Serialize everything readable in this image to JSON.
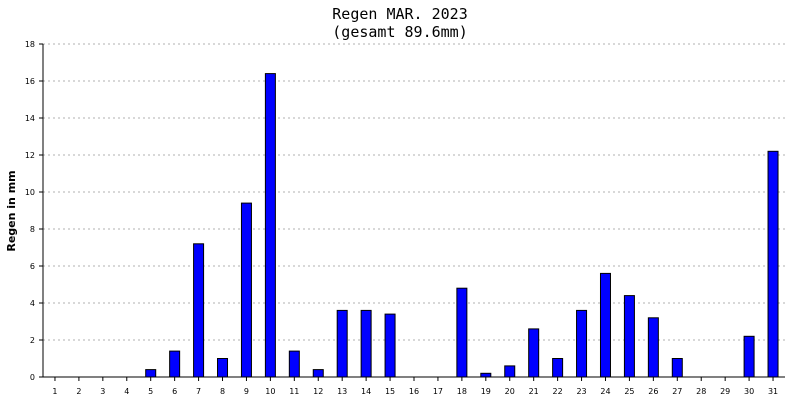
{
  "chart_data": {
    "type": "bar",
    "title": "Regen MAR. 2023",
    "subtitle": "(gesamt 89.6mm)",
    "ylabel": "Regen in mm",
    "xlabel": "",
    "ylim": [
      0,
      18
    ],
    "yticks": [
      0,
      2,
      4,
      6,
      8,
      10,
      12,
      14,
      16,
      18
    ],
    "grid": true,
    "bar_color": "#0000ff",
    "categories": [
      "1",
      "2",
      "3",
      "4",
      "5",
      "6",
      "7",
      "8",
      "9",
      "10",
      "11",
      "12",
      "13",
      "14",
      "15",
      "16",
      "17",
      "18",
      "19",
      "20",
      "21",
      "22",
      "23",
      "24",
      "25",
      "26",
      "27",
      "28",
      "29",
      "30",
      "31"
    ],
    "values": [
      0,
      0,
      0,
      0,
      0.4,
      1.4,
      7.2,
      1.0,
      9.4,
      16.4,
      1.4,
      0.4,
      3.6,
      3.6,
      3.4,
      0,
      0,
      4.8,
      0.2,
      0.6,
      2.6,
      1.0,
      3.6,
      5.6,
      4.4,
      3.2,
      1.0,
      0,
      0,
      2.2,
      12.2
    ]
  }
}
